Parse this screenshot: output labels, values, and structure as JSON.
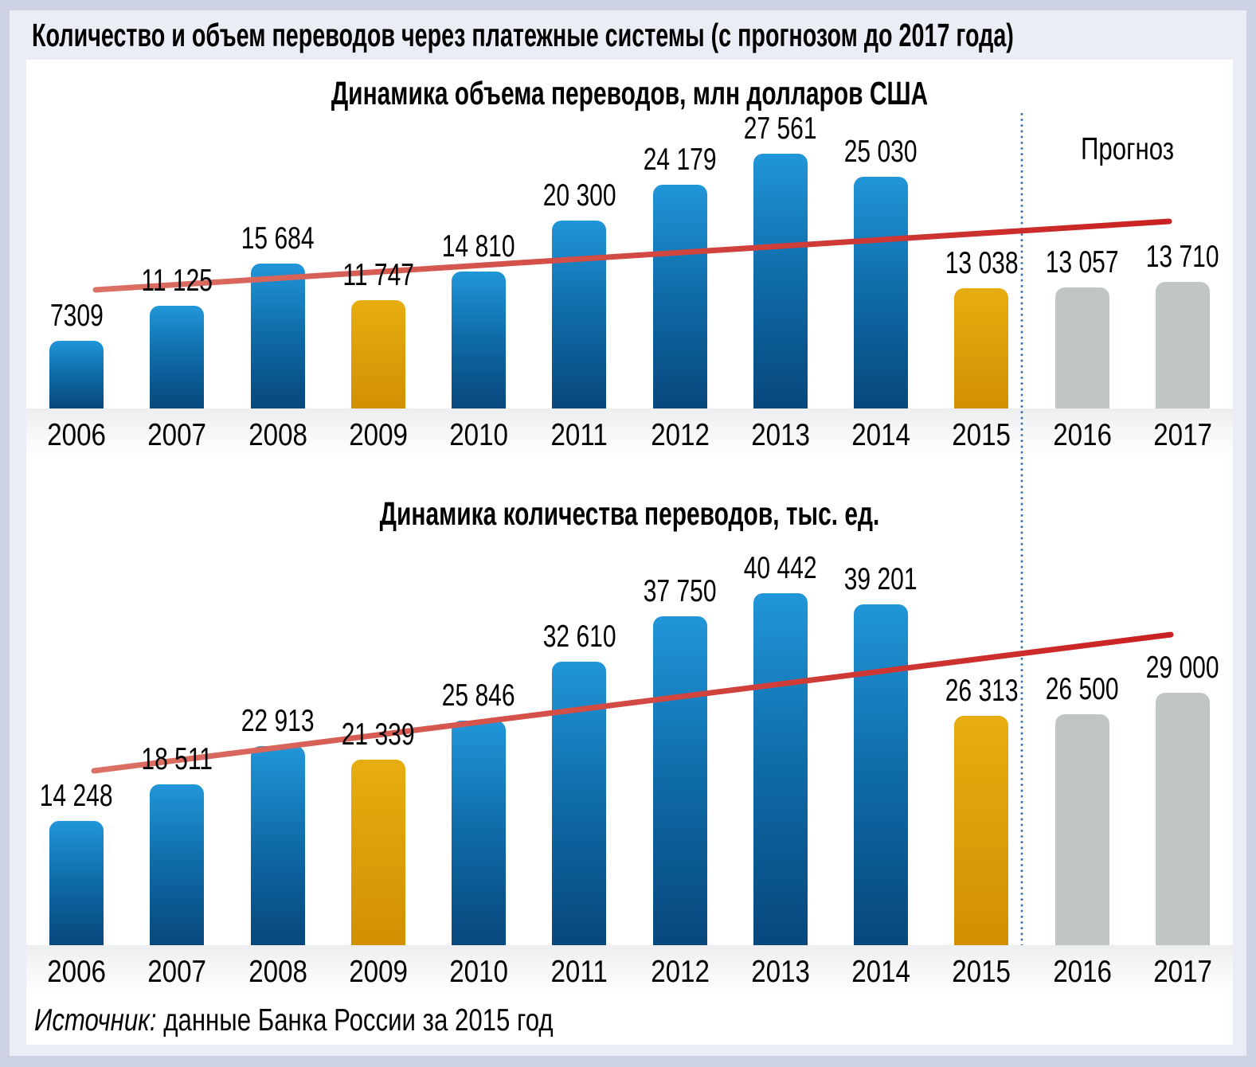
{
  "main_title": "Количество и объем переводов через платежные системы (с прогнозом до 2017 года)",
  "forecast_label": "Прогноз",
  "source": {
    "label": "Источник:",
    "text": "данные Банка России за 2015 год"
  },
  "colors": {
    "bg_outer": "#CDD3E4",
    "bg_panel": "#EBEDF6",
    "blue_top": "#2196D8",
    "blue_mid": "#0F6CA9",
    "blue_bottom": "#07477C",
    "orange_top": "#E7AD10",
    "orange_bottom": "#D19002",
    "gray_bar": "#BFC6C4",
    "trend_start": "#DB7165",
    "trend_end": "#C92121",
    "divider_dotted": "#2F6EB0"
  },
  "chart_data": [
    {
      "type": "bar",
      "title": "Динамика объема переводов, млн долларов США",
      "categories": [
        "2006",
        "2007",
        "2008",
        "2009",
        "2010",
        "2011",
        "2012",
        "2013",
        "2014",
        "2015",
        "2016",
        "2017"
      ],
      "values": [
        7309,
        11125,
        15684,
        11747,
        14810,
        20300,
        24179,
        27561,
        25030,
        13038,
        13057,
        13710
      ],
      "value_labels": [
        "7309",
        "11 125",
        "15 684",
        "11 747",
        "14 810",
        "20 300",
        "24 179",
        "27 561",
        "25 030",
        "13 038",
        "13 057",
        "13 710"
      ],
      "bar_roles": [
        "actual",
        "actual",
        "actual",
        "crisis",
        "actual",
        "actual",
        "actual",
        "actual",
        "actual",
        "crisis",
        "forecast",
        "forecast"
      ],
      "xlabel": "",
      "ylabel": "млн долларов США",
      "ylim": [
        0,
        27561
      ],
      "y_axis_visible": false,
      "grid": false,
      "legend": false,
      "value_labels_position": "above bars",
      "trendline": true,
      "forecast_divider_after": "2015",
      "forecast_categories": [
        "2016",
        "2017"
      ]
    },
    {
      "type": "bar",
      "title": "Динамика количества переводов, тыс. ед.",
      "categories": [
        "2006",
        "2007",
        "2008",
        "2009",
        "2010",
        "2011",
        "2012",
        "2013",
        "2014",
        "2015",
        "2016",
        "2017"
      ],
      "values": [
        14248,
        18511,
        22913,
        21339,
        25846,
        32610,
        37750,
        40442,
        39201,
        26313,
        26500,
        29000
      ],
      "value_labels": [
        "14 248",
        "18 511",
        "22 913",
        "21 339",
        "25 846",
        "32 610",
        "37 750",
        "40 442",
        "39 201",
        "26 313",
        "26 500",
        "29 000"
      ],
      "bar_roles": [
        "actual",
        "actual",
        "actual",
        "crisis",
        "actual",
        "actual",
        "actual",
        "actual",
        "actual",
        "crisis",
        "forecast",
        "forecast"
      ],
      "xlabel": "",
      "ylabel": "тыс. ед.",
      "ylim": [
        0,
        40442
      ],
      "y_axis_visible": false,
      "grid": false,
      "legend": false,
      "value_labels_position": "above bars",
      "trendline": true,
      "forecast_divider_after": "2015",
      "forecast_categories": [
        "2016",
        "2017"
      ]
    }
  ]
}
